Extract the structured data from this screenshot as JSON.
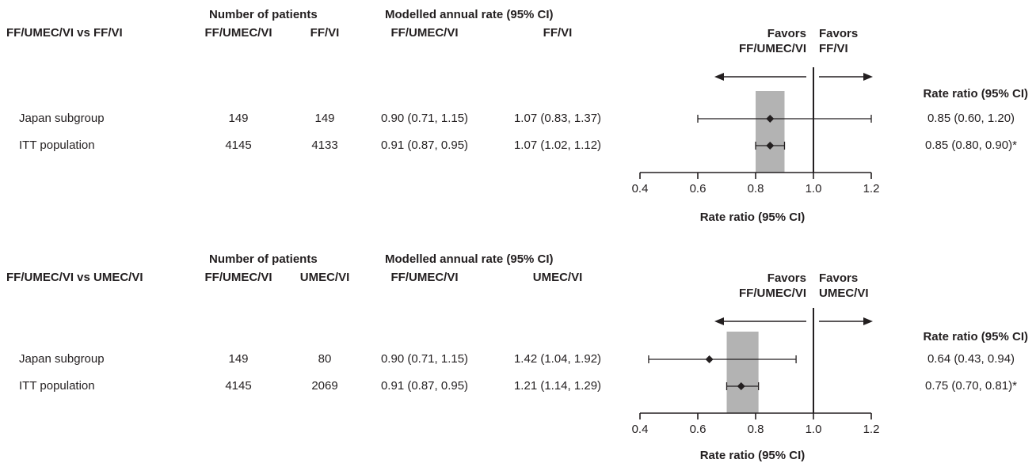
{
  "chart_data": [
    {
      "type": "forest",
      "comparison_label": "FF/UMEC/VI vs FF/VI",
      "group_headers": {
        "patients": "Number of patients",
        "rate": "Modelled annual rate (95% CI)"
      },
      "columns": {
        "n_a": "FF/UMEC/VI",
        "n_b": "FF/VI",
        "rate_a": "FF/UMEC/VI",
        "rate_b": "FF/VI"
      },
      "favors_left": [
        "Favors",
        "FF/UMEC/VI"
      ],
      "favors_right": [
        "Favors",
        "FF/VI"
      ],
      "ratio_header": "Rate ratio (95% CI)",
      "xlabel": "Rate ratio (95% CI)",
      "xlim": [
        0.4,
        1.2
      ],
      "xticks": [
        "0.4",
        "0.6",
        "0.8",
        "1.0",
        "1.2"
      ],
      "reference_line": 1.0,
      "ci_band": [
        0.8,
        0.9
      ],
      "rows": [
        {
          "label": "Japan subgroup",
          "n_a": "149",
          "n_b": "149",
          "rate_a": "0.90 (0.71, 1.15)",
          "rate_b": "1.07 (0.83, 1.37)",
          "estimate": 0.85,
          "lo": 0.6,
          "hi": 1.2,
          "ratio_text": "0.85 (0.60, 1.20)"
        },
        {
          "label": "ITT population",
          "n_a": "4145",
          "n_b": "4133",
          "rate_a": "0.91 (0.87, 0.95)",
          "rate_b": "1.07 (1.02, 1.12)",
          "estimate": 0.85,
          "lo": 0.8,
          "hi": 0.9,
          "ratio_text": "0.85 (0.80, 0.90)*"
        }
      ]
    },
    {
      "type": "forest",
      "comparison_label": "FF/UMEC/VI vs UMEC/VI",
      "group_headers": {
        "patients": "Number of patients",
        "rate": "Modelled annual rate (95% CI)"
      },
      "columns": {
        "n_a": "FF/UMEC/VI",
        "n_b": "UMEC/VI",
        "rate_a": "FF/UMEC/VI",
        "rate_b": "UMEC/VI"
      },
      "favors_left": [
        "Favors",
        "FF/UMEC/VI"
      ],
      "favors_right": [
        "Favors",
        "UMEC/VI"
      ],
      "ratio_header": "Rate ratio (95% CI)",
      "xlabel": "Rate ratio (95% CI)",
      "xlim": [
        0.4,
        1.2
      ],
      "xticks": [
        "0.4",
        "0.6",
        "0.8",
        "1.0",
        "1.2"
      ],
      "reference_line": 1.0,
      "ci_band": [
        0.7,
        0.81
      ],
      "rows": [
        {
          "label": "Japan subgroup",
          "n_a": "149",
          "n_b": "80",
          "rate_a": "0.90 (0.71, 1.15)",
          "rate_b": "1.42 (1.04, 1.92)",
          "estimate": 0.64,
          "lo": 0.43,
          "hi": 0.94,
          "ratio_text": "0.64 (0.43, 0.94)"
        },
        {
          "label": "ITT population",
          "n_a": "4145",
          "n_b": "2069",
          "rate_a": "0.91 (0.87, 0.95)",
          "rate_b": "1.21 (1.14, 1.29)",
          "estimate": 0.75,
          "lo": 0.7,
          "hi": 0.81,
          "ratio_text": "0.75 (0.70, 0.81)*"
        }
      ]
    }
  ],
  "colors": {
    "text": "#231f20",
    "band": "#b3b3b3",
    "line": "#231f20"
  }
}
